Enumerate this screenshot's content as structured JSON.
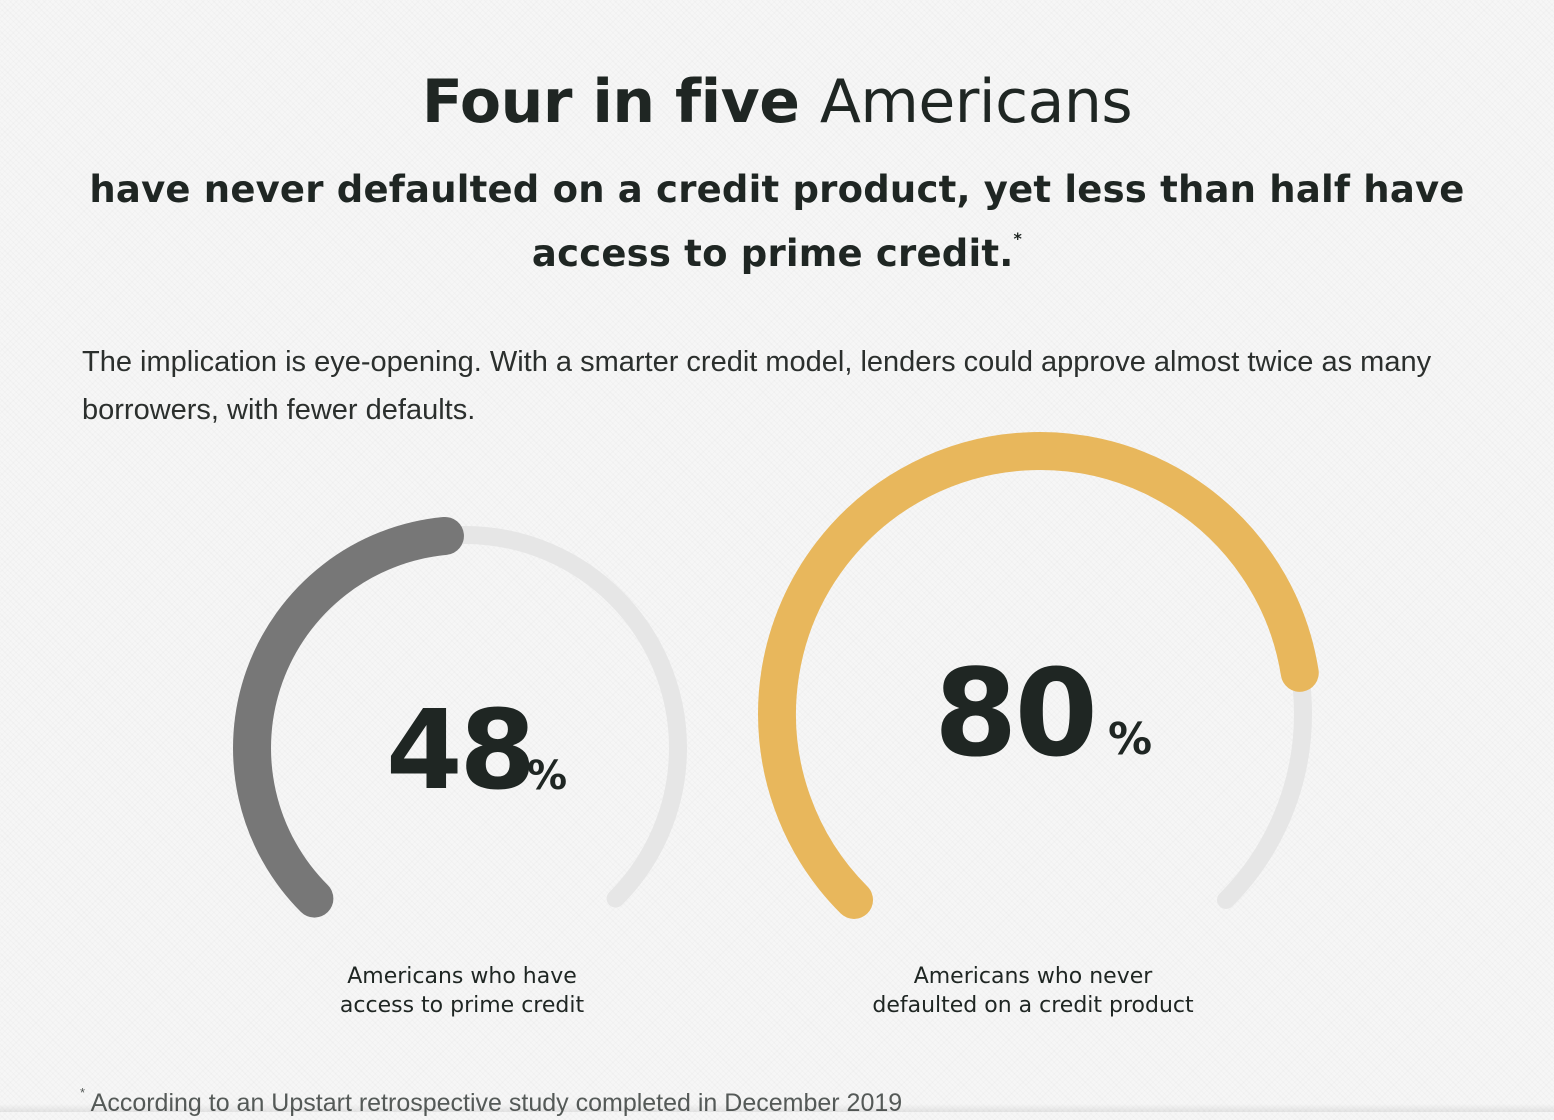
{
  "headline": {
    "bold_part": "Four in five",
    "light_part": "Americans"
  },
  "subhead": {
    "text": "have never defaulted on a credit product, yet less than half have access to prime credit.",
    "footnote_marker": "*"
  },
  "intro": {
    "text": "The implication is eye-opening. With a smarter credit model, lenders could approve almost twice as many borrowers, with fewer defaults."
  },
  "colors": {
    "track": "#e6e6e6",
    "gauge_primary": "#777777",
    "gauge_accent": "#e8b75c"
  },
  "gauges": [
    {
      "value_text": "48",
      "unit": "%",
      "percent": 48,
      "caption_line1": "Americans who have",
      "caption_line2": "access to prime credit",
      "color_key": "gauge_primary"
    },
    {
      "value_text": "80",
      "unit": "%",
      "percent": 80,
      "caption_line1": "Americans who never",
      "caption_line2": "defaulted on a credit product",
      "color_key": "gauge_accent"
    }
  ],
  "footnote": {
    "marker": "*",
    "text": "According to an Upstart retrospective study completed in December 2019"
  }
}
